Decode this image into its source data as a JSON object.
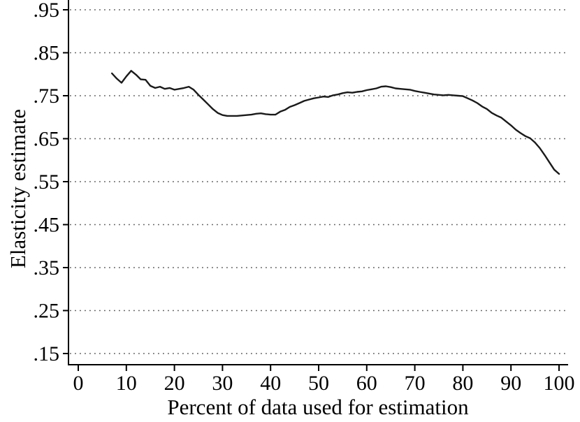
{
  "chart_data": {
    "type": "line",
    "title": "",
    "xlabel": "Percent of data used for estimation",
    "ylabel": "Elasticity estimate",
    "xlim": [
      0,
      100
    ],
    "ylim": [
      0.15,
      0.95
    ],
    "x_ticks": [
      0,
      10,
      20,
      30,
      40,
      50,
      60,
      70,
      80,
      90,
      100
    ],
    "x_tick_labels": [
      "0",
      "10",
      "20",
      "30",
      "40",
      "50",
      "60",
      "70",
      "80",
      "90",
      "100"
    ],
    "y_ticks": [
      0.15,
      0.25,
      0.35,
      0.45,
      0.55,
      0.65,
      0.75,
      0.85,
      0.95
    ],
    "y_tick_labels": [
      ".15",
      ".25",
      ".35",
      ".45",
      ".55",
      ".65",
      ".75",
      ".85",
      ".95"
    ],
    "grid": "horizontal-dotted",
    "legend": "none",
    "colors": {
      "line": "#1a1a1a",
      "axis": "#000000",
      "grid": "#595959",
      "background": "#ffffff"
    },
    "series": [
      {
        "name": "elasticity-estimate",
        "x": [
          7,
          8,
          9,
          10,
          11,
          12,
          13,
          14,
          15,
          16,
          17,
          18,
          19,
          20,
          21,
          22,
          23,
          24,
          25,
          26,
          27,
          28,
          29,
          30,
          31,
          32,
          33,
          34,
          35,
          36,
          37,
          38,
          39,
          40,
          41,
          42,
          43,
          44,
          45,
          46,
          47,
          48,
          49,
          50,
          51,
          52,
          53,
          54,
          55,
          56,
          57,
          58,
          59,
          60,
          61,
          62,
          63,
          64,
          65,
          66,
          67,
          68,
          69,
          70,
          71,
          72,
          73,
          74,
          75,
          76,
          77,
          78,
          79,
          80,
          81,
          82,
          83,
          84,
          85,
          86,
          87,
          88,
          89,
          90,
          91,
          92,
          93,
          94,
          95,
          96,
          97,
          98,
          99,
          100
        ],
        "y": [
          0.802,
          0.79,
          0.78,
          0.795,
          0.808,
          0.799,
          0.788,
          0.787,
          0.773,
          0.768,
          0.771,
          0.766,
          0.768,
          0.764,
          0.766,
          0.768,
          0.771,
          0.764,
          0.752,
          0.741,
          0.73,
          0.719,
          0.71,
          0.705,
          0.703,
          0.703,
          0.703,
          0.704,
          0.705,
          0.706,
          0.708,
          0.709,
          0.707,
          0.706,
          0.706,
          0.713,
          0.717,
          0.724,
          0.728,
          0.733,
          0.738,
          0.741,
          0.744,
          0.746,
          0.748,
          0.747,
          0.751,
          0.753,
          0.756,
          0.758,
          0.757,
          0.759,
          0.76,
          0.763,
          0.765,
          0.767,
          0.771,
          0.772,
          0.77,
          0.767,
          0.766,
          0.765,
          0.764,
          0.761,
          0.759,
          0.757,
          0.755,
          0.753,
          0.752,
          0.751,
          0.752,
          0.751,
          0.75,
          0.749,
          0.744,
          0.739,
          0.733,
          0.725,
          0.719,
          0.71,
          0.704,
          0.699,
          0.69,
          0.681,
          0.671,
          0.663,
          0.656,
          0.651,
          0.641,
          0.628,
          0.612,
          0.595,
          0.578,
          0.568
        ]
      }
    ]
  }
}
